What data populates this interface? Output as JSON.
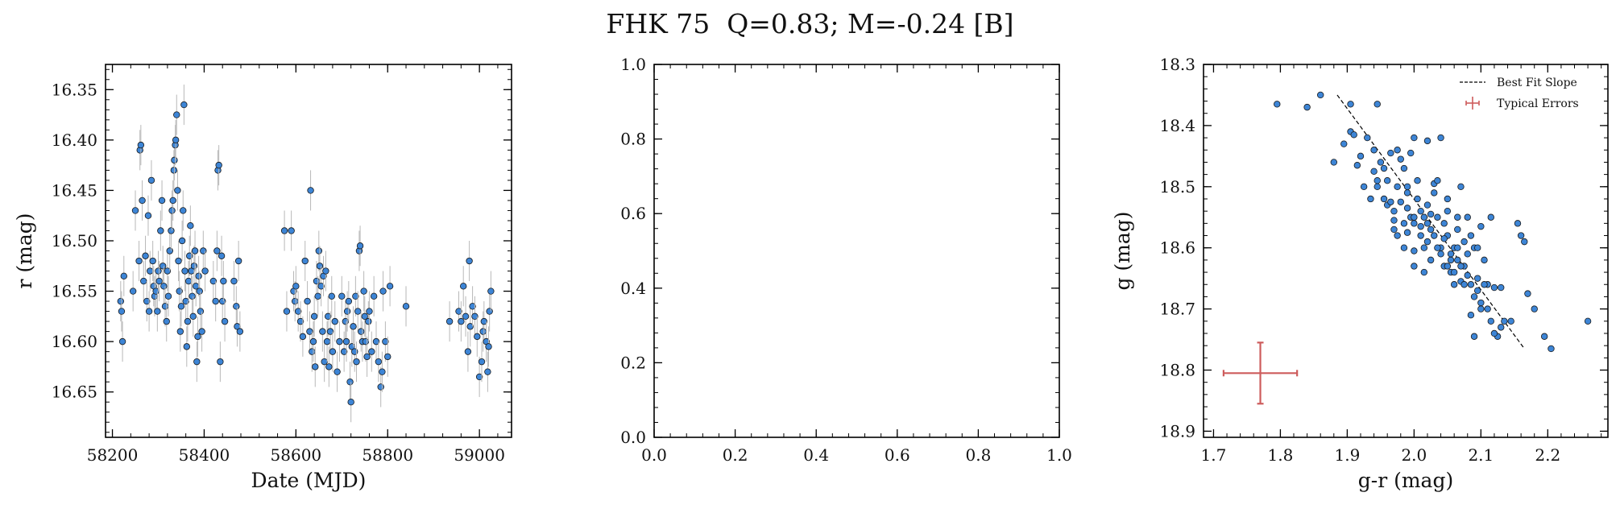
{
  "figure": {
    "title": "FHK 75  Q=0.83; M=-0.24 [B]"
  },
  "colors": {
    "point_fill": "#3d85d6",
    "point_edge": "#1a1a1a",
    "errorbar": "#b8b8b8",
    "fit_line": "#000000",
    "typical_error": "#cd5c5c"
  },
  "chart_data": [
    {
      "type": "scatter",
      "xlabel": "Date (MJD)",
      "ylabel": "r (mag)",
      "xlim": [
        58185,
        59070
      ],
      "ylim": [
        16.695,
        16.325
      ],
      "y_inverted": true,
      "xticks": [
        58200,
        58400,
        58600,
        58800,
        59000
      ],
      "yticks": [
        16.35,
        16.4,
        16.45,
        16.5,
        16.55,
        16.6,
        16.65
      ],
      "xtick_labels": [
        "58200",
        "58400",
        "58600",
        "58800",
        "59000"
      ],
      "ytick_labels": [
        "16.35",
        "16.40",
        "16.45",
        "16.50",
        "16.55",
        "16.60",
        "16.65"
      ],
      "errorbars": "vertical, ~0.02 mag",
      "points": [
        [
          58218,
          16.56
        ],
        [
          58220,
          16.57
        ],
        [
          58222,
          16.6
        ],
        [
          58225,
          16.535
        ],
        [
          58245,
          16.55
        ],
        [
          58250,
          16.47
        ],
        [
          58258,
          16.52
        ],
        [
          58260,
          16.41
        ],
        [
          58262,
          16.405
        ],
        [
          58265,
          16.46
        ],
        [
          58268,
          16.54
        ],
        [
          58272,
          16.515
        ],
        [
          58275,
          16.56
        ],
        [
          58278,
          16.475
        ],
        [
          58280,
          16.57
        ],
        [
          58282,
          16.53
        ],
        [
          58285,
          16.44
        ],
        [
          58288,
          16.52
        ],
        [
          58290,
          16.545
        ],
        [
          58292,
          16.555
        ],
        [
          58295,
          16.55
        ],
        [
          58298,
          16.57
        ],
        [
          58300,
          16.53
        ],
        [
          58302,
          16.54
        ],
        [
          58305,
          16.49
        ],
        [
          58308,
          16.46
        ],
        [
          58310,
          16.525
        ],
        [
          58312,
          16.545
        ],
        [
          58315,
          16.565
        ],
        [
          58318,
          16.58
        ],
        [
          58320,
          16.53
        ],
        [
          58322,
          16.555
        ],
        [
          58325,
          16.51
        ],
        [
          58328,
          16.49
        ],
        [
          58330,
          16.47
        ],
        [
          58332,
          16.46
        ],
        [
          58334,
          16.43
        ],
        [
          58335,
          16.42
        ],
        [
          58337,
          16.405
        ],
        [
          58338,
          16.4
        ],
        [
          58340,
          16.375
        ],
        [
          58342,
          16.45
        ],
        [
          58344,
          16.52
        ],
        [
          58346,
          16.55
        ],
        [
          58348,
          16.59
        ],
        [
          58350,
          16.565
        ],
        [
          58352,
          16.5
        ],
        [
          58354,
          16.47
        ],
        [
          58356,
          16.365
        ],
        [
          58358,
          16.53
        ],
        [
          58360,
          16.56
        ],
        [
          58362,
          16.605
        ],
        [
          58364,
          16.58
        ],
        [
          58366,
          16.54
        ],
        [
          58368,
          16.515
        ],
        [
          58370,
          16.485
        ],
        [
          58372,
          16.53
        ],
        [
          58374,
          16.555
        ],
        [
          58376,
          16.575
        ],
        [
          58378,
          16.525
        ],
        [
          58380,
          16.51
        ],
        [
          58382,
          16.545
        ],
        [
          58384,
          16.62
        ],
        [
          58386,
          16.595
        ],
        [
          58388,
          16.535
        ],
        [
          58390,
          16.55
        ],
        [
          58392,
          16.57
        ],
        [
          58395,
          16.59
        ],
        [
          58398,
          16.51
        ],
        [
          58402,
          16.53
        ],
        [
          58420,
          16.54
        ],
        [
          58425,
          16.56
        ],
        [
          58428,
          16.51
        ],
        [
          58430,
          16.43
        ],
        [
          58432,
          16.425
        ],
        [
          58435,
          16.62
        ],
        [
          58438,
          16.515
        ],
        [
          58440,
          16.56
        ],
        [
          58442,
          16.54
        ],
        [
          58445,
          16.58
        ],
        [
          58465,
          16.54
        ],
        [
          58470,
          16.565
        ],
        [
          58472,
          16.585
        ],
        [
          58475,
          16.52
        ],
        [
          58478,
          16.59
        ],
        [
          58575,
          16.49
        ],
        [
          58580,
          16.57
        ],
        [
          58590,
          16.49
        ],
        [
          58595,
          16.55
        ],
        [
          58598,
          16.56
        ],
        [
          58600,
          16.545
        ],
        [
          58605,
          16.57
        ],
        [
          58610,
          16.58
        ],
        [
          58615,
          16.595
        ],
        [
          58620,
          16.52
        ],
        [
          58625,
          16.56
        ],
        [
          58630,
          16.59
        ],
        [
          58632,
          16.45
        ],
        [
          58635,
          16.61
        ],
        [
          58638,
          16.6
        ],
        [
          58640,
          16.575
        ],
        [
          58642,
          16.625
        ],
        [
          58645,
          16.54
        ],
        [
          58648,
          16.555
        ],
        [
          58650,
          16.51
        ],
        [
          58652,
          16.525
        ],
        [
          58655,
          16.545
        ],
        [
          58658,
          16.59
        ],
        [
          58660,
          16.535
        ],
        [
          58662,
          16.62
        ],
        [
          58665,
          16.53
        ],
        [
          58668,
          16.6
        ],
        [
          58670,
          16.575
        ],
        [
          58672,
          16.625
        ],
        [
          58675,
          16.59
        ],
        [
          58678,
          16.555
        ],
        [
          58680,
          16.61
        ],
        [
          58685,
          16.58
        ],
        [
          58690,
          16.63
        ],
        [
          58695,
          16.6
        ],
        [
          58700,
          16.555
        ],
        [
          58705,
          16.61
        ],
        [
          58708,
          16.58
        ],
        [
          58710,
          16.6
        ],
        [
          58712,
          16.57
        ],
        [
          58715,
          16.56
        ],
        [
          58718,
          16.64
        ],
        [
          58720,
          16.66
        ],
        [
          58722,
          16.605
        ],
        [
          58725,
          16.585
        ],
        [
          58728,
          16.61
        ],
        [
          58730,
          16.555
        ],
        [
          58732,
          16.62
        ],
        [
          58735,
          16.57
        ],
        [
          58738,
          16.51
        ],
        [
          58740,
          16.505
        ],
        [
          58742,
          16.59
        ],
        [
          58745,
          16.6
        ],
        [
          58748,
          16.55
        ],
        [
          58750,
          16.575
        ],
        [
          58752,
          16.6
        ],
        [
          58755,
          16.615
        ],
        [
          58758,
          16.58
        ],
        [
          58760,
          16.57
        ],
        [
          58765,
          16.61
        ],
        [
          58770,
          16.555
        ],
        [
          58775,
          16.6
        ],
        [
          58780,
          16.62
        ],
        [
          58785,
          16.645
        ],
        [
          58788,
          16.63
        ],
        [
          58790,
          16.55
        ],
        [
          58795,
          16.6
        ],
        [
          58800,
          16.615
        ],
        [
          58805,
          16.545
        ],
        [
          58840,
          16.565
        ],
        [
          58935,
          16.58
        ],
        [
          58955,
          16.57
        ],
        [
          58960,
          16.58
        ],
        [
          58965,
          16.545
        ],
        [
          58970,
          16.575
        ],
        [
          58975,
          16.61
        ],
        [
          58978,
          16.52
        ],
        [
          58980,
          16.585
        ],
        [
          58985,
          16.565
        ],
        [
          58990,
          16.575
        ],
        [
          58995,
          16.595
        ],
        [
          59000,
          16.635
        ],
        [
          59005,
          16.62
        ],
        [
          59008,
          16.59
        ],
        [
          59010,
          16.58
        ],
        [
          59015,
          16.6
        ],
        [
          59018,
          16.63
        ],
        [
          59020,
          16.605
        ],
        [
          59022,
          16.57
        ],
        [
          59025,
          16.55
        ]
      ]
    },
    {
      "type": "scatter",
      "xlim": [
        0.0,
        1.0
      ],
      "ylim": [
        0.0,
        1.0
      ],
      "xticks": [
        0.0,
        0.2,
        0.4,
        0.6,
        0.8,
        1.0
      ],
      "yticks": [
        0.0,
        0.2,
        0.4,
        0.6,
        0.8,
        1.0
      ],
      "xtick_labels": [
        "0.0",
        "0.2",
        "0.4",
        "0.6",
        "0.8",
        "1.0"
      ],
      "ytick_labels": [
        "0.0",
        "0.2",
        "0.4",
        "0.6",
        "0.8",
        "1.0"
      ],
      "points": []
    },
    {
      "type": "scatter",
      "xlabel": "g-r (mag)",
      "ylabel": "g (mag)",
      "xlim": [
        1.685,
        2.29
      ],
      "ylim": [
        18.91,
        18.3
      ],
      "y_inverted": true,
      "xticks": [
        1.7,
        1.8,
        1.9,
        2.0,
        2.1,
        2.2
      ],
      "yticks": [
        18.3,
        18.4,
        18.5,
        18.6,
        18.7,
        18.8,
        18.9
      ],
      "xtick_labels": [
        "1.7",
        "1.8",
        "1.9",
        "2.0",
        "2.1",
        "2.2"
      ],
      "ytick_labels": [
        "18.3",
        "18.4",
        "18.5",
        "18.6",
        "18.7",
        "18.8",
        "18.9"
      ],
      "legend": {
        "position": "top-right",
        "entries": [
          "Best Fit Slope",
          "Typical Errors"
        ]
      },
      "best_fit_line": [
        [
          1.885,
          18.35
        ],
        [
          2.165,
          18.765
        ]
      ],
      "typical_error": {
        "x": 1.77,
        "y": 18.805,
        "xerr": 0.055,
        "yerr": 0.05
      },
      "points": [
        [
          1.795,
          18.365
        ],
        [
          1.84,
          18.37
        ],
        [
          1.86,
          18.35
        ],
        [
          1.905,
          18.365
        ],
        [
          1.945,
          18.365
        ],
        [
          1.88,
          18.46
        ],
        [
          1.895,
          18.43
        ],
        [
          1.905,
          18.41
        ],
        [
          1.91,
          18.415
        ],
        [
          1.915,
          18.465
        ],
        [
          1.92,
          18.45
        ],
        [
          1.93,
          18.42
        ],
        [
          1.935,
          18.52
        ],
        [
          1.94,
          18.44
        ],
        [
          1.94,
          18.475
        ],
        [
          1.945,
          18.5
        ],
        [
          1.95,
          18.46
        ],
        [
          1.955,
          18.52
        ],
        [
          1.96,
          18.49
        ],
        [
          1.96,
          18.53
        ],
        [
          1.965,
          18.445
        ],
        [
          1.97,
          18.54
        ],
        [
          1.97,
          18.555
        ],
        [
          1.975,
          18.44
        ],
        [
          1.975,
          18.5
        ],
        [
          1.98,
          18.455
        ],
        [
          1.98,
          18.525
        ],
        [
          1.985,
          18.56
        ],
        [
          1.99,
          18.51
        ],
        [
          1.99,
          18.535
        ],
        [
          1.995,
          18.445
        ],
        [
          1.995,
          18.55
        ],
        [
          2.0,
          18.42
        ],
        [
          2.0,
          18.56
        ],
        [
          2.005,
          18.52
        ],
        [
          2.005,
          18.49
        ],
        [
          2.01,
          18.54
        ],
        [
          2.01,
          18.565
        ],
        [
          2.015,
          18.55
        ],
        [
          2.015,
          18.6
        ],
        [
          2.02,
          18.425
        ],
        [
          2.02,
          18.53
        ],
        [
          2.025,
          18.57
        ],
        [
          2.025,
          18.62
        ],
        [
          2.03,
          18.495
        ],
        [
          2.03,
          18.58
        ],
        [
          2.035,
          18.49
        ],
        [
          2.035,
          18.55
        ],
        [
          2.04,
          18.6
        ],
        [
          2.04,
          18.42
        ],
        [
          2.045,
          18.56
        ],
        [
          2.045,
          18.63
        ],
        [
          2.05,
          18.58
        ],
        [
          2.05,
          18.52
        ],
        [
          2.055,
          18.61
        ],
        [
          2.055,
          18.64
        ],
        [
          2.06,
          18.6
        ],
        [
          2.06,
          18.66
        ],
        [
          2.065,
          18.57
        ],
        [
          2.065,
          18.62
        ],
        [
          2.07,
          18.5
        ],
        [
          2.07,
          18.655
        ],
        [
          2.075,
          18.59
        ],
        [
          2.075,
          18.63
        ],
        [
          2.08,
          18.61
        ],
        [
          2.08,
          18.55
        ],
        [
          2.085,
          18.66
        ],
        [
          2.085,
          18.71
        ],
        [
          2.09,
          18.6
        ],
        [
          2.09,
          18.745
        ],
        [
          2.095,
          18.65
        ],
        [
          2.1,
          18.565
        ],
        [
          2.1,
          18.69
        ],
        [
          2.105,
          18.62
        ],
        [
          2.11,
          18.66
        ],
        [
          2.115,
          18.55
        ],
        [
          2.115,
          18.72
        ],
        [
          2.12,
          18.665
        ],
        [
          2.125,
          18.745
        ],
        [
          2.13,
          18.665
        ],
        [
          2.135,
          18.72
        ],
        [
          2.145,
          18.72
        ],
        [
          2.155,
          18.56
        ],
        [
          2.16,
          18.58
        ],
        [
          2.165,
          18.59
        ],
        [
          2.17,
          18.675
        ],
        [
          2.18,
          18.7
        ],
        [
          2.195,
          18.745
        ],
        [
          2.205,
          18.765
        ],
        [
          2.26,
          18.72
        ],
        [
          1.965,
          18.525
        ],
        [
          1.975,
          18.58
        ],
        [
          1.985,
          18.6
        ],
        [
          1.99,
          18.575
        ],
        [
          2.0,
          18.55
        ],
        [
          2.0,
          18.605
        ],
        [
          2.01,
          18.58
        ],
        [
          2.02,
          18.59
        ],
        [
          2.025,
          18.545
        ],
        [
          2.035,
          18.6
        ],
        [
          2.04,
          18.61
        ],
        [
          2.045,
          18.585
        ],
        [
          2.05,
          18.63
        ],
        [
          2.055,
          18.62
        ],
        [
          2.06,
          18.64
        ],
        [
          2.065,
          18.6
        ],
        [
          2.07,
          18.63
        ],
        [
          2.075,
          18.66
        ],
        [
          2.08,
          18.645
        ],
        [
          2.09,
          18.68
        ],
        [
          2.095,
          18.67
        ],
        [
          2.1,
          18.7
        ],
        [
          2.105,
          18.66
        ],
        [
          2.11,
          18.7
        ],
        [
          2.12,
          18.74
        ],
        [
          2.13,
          18.73
        ],
        [
          1.925,
          18.5
        ],
        [
          1.945,
          18.49
        ],
        [
          1.955,
          18.47
        ],
        [
          1.985,
          18.47
        ],
        [
          2.03,
          18.51
        ],
        [
          2.05,
          18.54
        ],
        [
          2.065,
          18.55
        ],
        [
          2.085,
          18.58
        ],
        [
          2.095,
          18.6
        ],
        [
          2.0,
          18.63
        ],
        [
          2.015,
          18.64
        ],
        [
          1.97,
          18.57
        ],
        [
          1.99,
          18.5
        ],
        [
          2.02,
          18.56
        ]
      ]
    }
  ]
}
